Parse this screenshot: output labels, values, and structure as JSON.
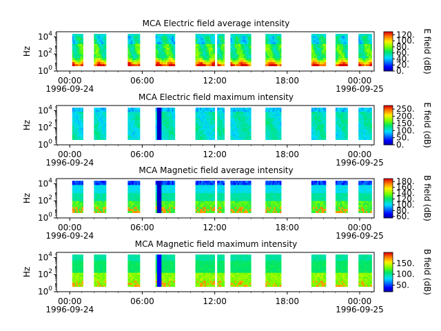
{
  "chart_data": [
    {
      "type": "heatmap",
      "title": "MCA  Electric field average intensity",
      "ylabel": "Hz",
      "y_ticks": [
        {
          "base": "10",
          "exp": "0"
        },
        {
          "base": "10",
          "exp": "2"
        },
        {
          "base": "10",
          "exp": "4"
        }
      ],
      "y_scale": "log",
      "ylim_log10": [
        0,
        4.6
      ],
      "x_ticks": [
        "00:00",
        "06:00",
        "12:00",
        "18:00",
        "00:00"
      ],
      "x_tick_hours": [
        0,
        6,
        12,
        18,
        24
      ],
      "x_dates": [
        {
          "hour": 0,
          "label": "1996-09-24"
        },
        {
          "hour": 24,
          "label": "1996-09-25"
        }
      ],
      "xlim_hours": [
        -1.1,
        25.2
      ],
      "colorbar": {
        "label": "E field (dB)",
        "min": 0,
        "max": 130,
        "ticks": [
          "0.",
          "20.",
          "40.",
          "60.",
          "80.",
          "100.",
          "120."
        ],
        "tick_values": [
          0,
          20,
          40,
          60,
          80,
          100,
          120
        ]
      },
      "mode": "e_avg",
      "data_coverage_hours": [
        [
          0.2,
          1.1
        ],
        [
          2.0,
          3.0
        ],
        [
          4.8,
          5.8
        ],
        [
          7.1,
          8.7
        ],
        [
          10.4,
          12.0
        ],
        [
          12.2,
          12.8
        ],
        [
          13.3,
          15.0
        ],
        [
          16.2,
          17.5
        ],
        [
          20.0,
          21.2
        ],
        [
          22.0,
          23.0
        ],
        [
          23.9,
          25.0
        ]
      ]
    },
    {
      "type": "heatmap",
      "title": "MCA  Electric field maximum intensity",
      "ylabel": "Hz",
      "y_ticks": [
        {
          "base": "10",
          "exp": "0"
        },
        {
          "base": "10",
          "exp": "2"
        },
        {
          "base": "10",
          "exp": "4"
        }
      ],
      "y_scale": "log",
      "ylim_log10": [
        0,
        4.6
      ],
      "x_ticks": [
        "00:00",
        "06:00",
        "12:00",
        "18:00",
        "00:00"
      ],
      "x_tick_hours": [
        0,
        6,
        12,
        18,
        24
      ],
      "x_dates": [
        {
          "hour": 0,
          "label": "1996-09-24"
        },
        {
          "hour": 24,
          "label": "1996-09-25"
        }
      ],
      "xlim_hours": [
        -1.1,
        25.2
      ],
      "colorbar": {
        "label": "E field (dB)",
        "min": 0,
        "max": 275,
        "ticks": [
          "0.",
          "50.",
          "100.",
          "150.",
          "200.",
          "250."
        ],
        "tick_values": [
          0,
          50,
          100,
          150,
          200,
          250
        ]
      },
      "mode": "e_max",
      "data_coverage_hours": [
        [
          0.2,
          1.1
        ],
        [
          2.0,
          3.0
        ],
        [
          4.8,
          5.8
        ],
        [
          7.1,
          8.7
        ],
        [
          10.4,
          12.0
        ],
        [
          12.2,
          12.8
        ],
        [
          13.3,
          15.0
        ],
        [
          16.2,
          17.5
        ],
        [
          20.0,
          21.2
        ],
        [
          22.0,
          23.0
        ],
        [
          23.9,
          25.0
        ]
      ]
    },
    {
      "type": "heatmap",
      "title": "MCA  Magnetic field average intensity",
      "ylabel": "Hz",
      "y_ticks": [
        {
          "base": "10",
          "exp": "0"
        },
        {
          "base": "10",
          "exp": "2"
        },
        {
          "base": "10",
          "exp": "4"
        }
      ],
      "y_scale": "log",
      "ylim_log10": [
        0,
        4.6
      ],
      "x_ticks": [
        "00:00",
        "06:00",
        "12:00",
        "18:00",
        "00:00"
      ],
      "x_tick_hours": [
        0,
        6,
        12,
        18,
        24
      ],
      "x_dates": [
        {
          "hour": 0,
          "label": "1996-09-24"
        },
        {
          "hour": 24,
          "label": "1996-09-25"
        }
      ],
      "xlim_hours": [
        -1.1,
        25.2
      ],
      "colorbar": {
        "label": "B field (dB)",
        "min": 55,
        "max": 190,
        "ticks": [
          "60.",
          "80.",
          "100.",
          "120.",
          "140.",
          "160.",
          "180."
        ],
        "tick_values": [
          60,
          80,
          100,
          120,
          140,
          160,
          180
        ]
      },
      "mode": "b_avg",
      "data_coverage_hours": [
        [
          0.2,
          1.1
        ],
        [
          2.0,
          3.0
        ],
        [
          4.8,
          5.8
        ],
        [
          7.1,
          8.7
        ],
        [
          10.4,
          12.0
        ],
        [
          12.2,
          12.8
        ],
        [
          13.3,
          15.0
        ],
        [
          16.2,
          17.5
        ],
        [
          20.0,
          21.2
        ],
        [
          22.0,
          23.0
        ],
        [
          23.9,
          25.0
        ]
      ]
    },
    {
      "type": "heatmap",
      "title": "MCA  Magnetic field maximum intensity",
      "ylabel": "Hz",
      "y_ticks": [
        {
          "base": "10",
          "exp": "0"
        },
        {
          "base": "10",
          "exp": "2"
        },
        {
          "base": "10",
          "exp": "4"
        }
      ],
      "y_scale": "log",
      "ylim_log10": [
        0,
        4.6
      ],
      "x_ticks": [
        "00:00",
        "06:00",
        "12:00",
        "18:00",
        "00:00"
      ],
      "x_tick_hours": [
        0,
        6,
        12,
        18,
        24
      ],
      "x_dates": [
        {
          "hour": 0,
          "label": "1996-09-24"
        },
        {
          "hour": 24,
          "label": "1996-09-25"
        }
      ],
      "xlim_hours": [
        -1.1,
        25.2
      ],
      "colorbar": {
        "label": "B field (dB)",
        "min": 20,
        "max": 200,
        "ticks": [
          "50.",
          "100.",
          "150."
        ],
        "tick_values": [
          50,
          100,
          150
        ]
      },
      "mode": "b_max",
      "data_coverage_hours": [
        [
          0.2,
          1.1
        ],
        [
          2.0,
          3.0
        ],
        [
          4.8,
          5.8
        ],
        [
          7.1,
          8.7
        ],
        [
          10.4,
          12.0
        ],
        [
          12.2,
          12.8
        ],
        [
          13.3,
          15.0
        ],
        [
          16.2,
          17.5
        ],
        [
          20.0,
          21.2
        ],
        [
          22.0,
          23.0
        ],
        [
          23.9,
          25.0
        ]
      ]
    }
  ]
}
